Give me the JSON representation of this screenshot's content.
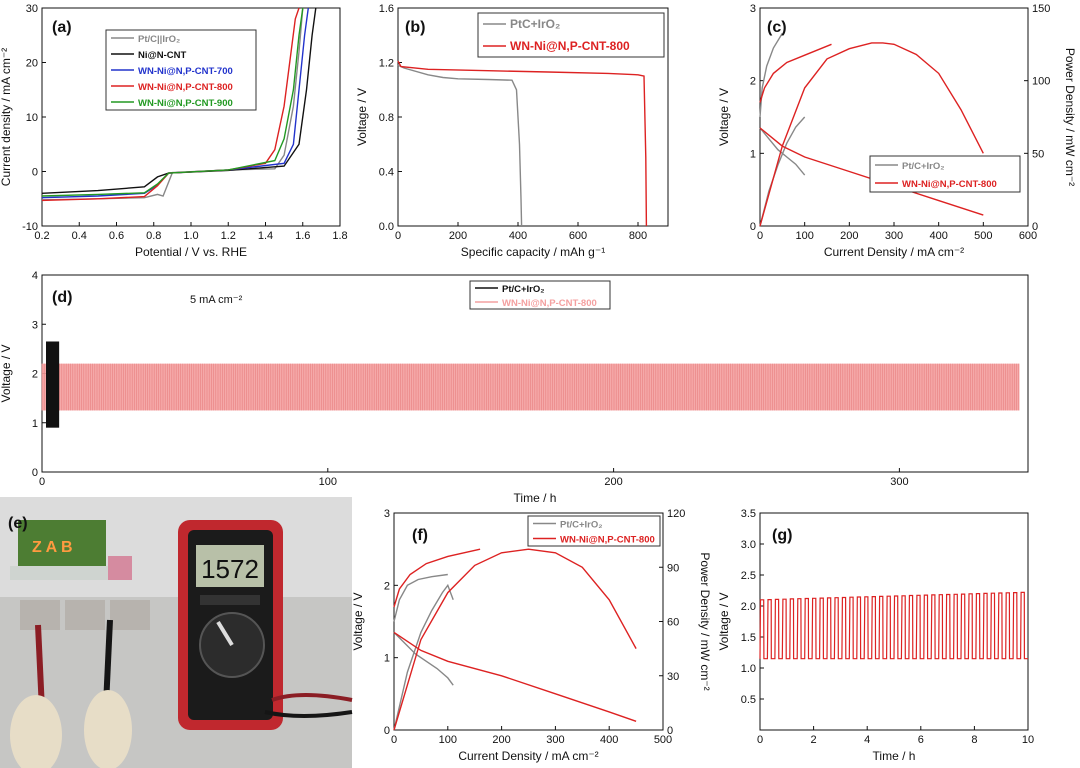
{
  "panels": {
    "a": {
      "tag": "(a)"
    },
    "b": {
      "tag": "(b)"
    },
    "c": {
      "tag": "(c)"
    },
    "d": {
      "tag": "(d)",
      "annotation": "5 mA cm⁻²"
    },
    "e": {
      "tag": "(e)",
      "meter_reading": "1572"
    },
    "f": {
      "tag": "(f)"
    },
    "g": {
      "tag": "(g)"
    }
  },
  "colors": {
    "ptc": "#888888",
    "ptc_d": "#111111",
    "nicnt": "#111111",
    "wn700": "#2233cc",
    "wn800": "#dd2222",
    "wn800_d": "#f4a0a0",
    "wn900": "#229922"
  },
  "chart_data": [
    {
      "id": "a",
      "type": "line",
      "xlabel": "Potential / V vs. RHE",
      "ylabel": "Current density / mA cm⁻²",
      "xlim": [
        0.2,
        1.8
      ],
      "ylim": [
        -10,
        30
      ],
      "xticks": [
        "0.2",
        "0.4",
        "0.6",
        "0.8",
        "1.0",
        "1.2",
        "1.4",
        "1.6",
        "1.8"
      ],
      "yticks": [
        "-10",
        "0",
        "10",
        "20",
        "30"
      ],
      "legend": "top-left",
      "series": [
        {
          "name": "Pt/C||IrO₂",
          "colorKey": "ptc",
          "x": [
            0.2,
            0.5,
            0.75,
            0.82,
            0.85,
            0.9,
            1.2,
            1.45,
            1.5,
            1.55,
            1.58,
            1.6
          ],
          "y": [
            -5.2,
            -5,
            -4.8,
            -4.2,
            -4.5,
            -0.2,
            0.3,
            0.5,
            3,
            12,
            22,
            30
          ]
        },
        {
          "name": "Ni@N-CNT",
          "colorKey": "nicnt",
          "x": [
            0.2,
            0.5,
            0.75,
            0.82,
            0.88,
            1.2,
            1.5,
            1.58,
            1.62,
            1.65,
            1.67
          ],
          "y": [
            -4,
            -3.5,
            -2.8,
            -1,
            -0.3,
            0.2,
            1,
            5,
            15,
            25,
            30
          ]
        },
        {
          "name": "WN-Ni@N,P-CNT-700",
          "colorKey": "wn700",
          "x": [
            0.2,
            0.5,
            0.75,
            0.82,
            0.88,
            1.2,
            1.5,
            1.55,
            1.58,
            1.61,
            1.63
          ],
          "y": [
            -4.8,
            -4.5,
            -4,
            -2.5,
            -0.3,
            0.3,
            1.5,
            5,
            15,
            25,
            30
          ]
        },
        {
          "name": "WN-Ni@N,P-CNT-800",
          "colorKey": "wn800",
          "x": [
            0.2,
            0.5,
            0.75,
            0.82,
            0.88,
            1.2,
            1.4,
            1.45,
            1.5,
            1.53,
            1.56,
            1.58
          ],
          "y": [
            -5.3,
            -5,
            -4.6,
            -2.6,
            -0.3,
            0.3,
            1.5,
            4,
            12,
            20,
            28,
            30
          ]
        },
        {
          "name": "WN-Ni@N,P-CNT-900",
          "colorKey": "wn900",
          "x": [
            0.2,
            0.5,
            0.75,
            0.82,
            0.88,
            1.2,
            1.45,
            1.5,
            1.55,
            1.58,
            1.6
          ],
          "y": [
            -4.5,
            -4.2,
            -3.9,
            -2.3,
            -0.3,
            0.3,
            2,
            6,
            15,
            25,
            30
          ]
        }
      ]
    },
    {
      "id": "b",
      "type": "line",
      "xlabel": "Specific capacity / mAh g⁻¹",
      "ylabel": "Voltage / V",
      "xlim": [
        0,
        900
      ],
      "ylim": [
        0,
        1.6
      ],
      "xticks": [
        "0",
        "200",
        "400",
        "600",
        "800"
      ],
      "yticks": [
        "0.0",
        "0.4",
        "0.8",
        "1.2",
        "1.6"
      ],
      "legend": "top-right",
      "series": [
        {
          "name": "PtC+IrO₂",
          "colorKey": "ptc",
          "x": [
            0,
            20,
            100,
            150,
            200,
            300,
            380,
            395,
            405,
            410,
            412
          ],
          "y": [
            1.18,
            1.16,
            1.11,
            1.09,
            1.08,
            1.075,
            1.07,
            1.0,
            0.6,
            0.2,
            0
          ]
        },
        {
          "name": "WN-Ni@N,P-CNT-800",
          "colorKey": "wn800",
          "x": [
            0,
            10,
            100,
            300,
            500,
            700,
            800,
            820,
            826,
            828
          ],
          "y": [
            1.21,
            1.17,
            1.15,
            1.14,
            1.13,
            1.12,
            1.11,
            1.1,
            0.5,
            0
          ]
        }
      ]
    },
    {
      "id": "c",
      "type": "line",
      "xlabel": "Current Density / mA cm⁻²",
      "ylabel": "Voltage / V",
      "ylabel_right": "Power Density / mW cm⁻²",
      "xlim": [
        0,
        600
      ],
      "ylim": [
        0,
        3
      ],
      "ylim_right": [
        0,
        150
      ],
      "xticks": [
        "0",
        "100",
        "200",
        "300",
        "400",
        "500",
        "600"
      ],
      "yticks": [
        "0",
        "1",
        "2",
        "3"
      ],
      "yticks_right": [
        "0",
        "50",
        "100",
        "150"
      ],
      "legend": "bottom-right",
      "series": [
        {
          "name": "Pt/C+IrO₂",
          "colorKey": "ptc",
          "axis": "left",
          "x": [
            0,
            20,
            40,
            60,
            80,
            100
          ],
          "y": [
            1.35,
            1.2,
            1.05,
            0.95,
            0.85,
            0.7
          ]
        },
        {
          "name": "",
          "colorKey": "ptc",
          "axis": "left",
          "x": [
            0,
            5,
            15,
            30,
            50
          ],
          "y": [
            1.5,
            1.9,
            2.2,
            2.45,
            2.65
          ]
        },
        {
          "name": "",
          "colorKey": "ptc",
          "axis": "right",
          "x": [
            0,
            20,
            40,
            60,
            80,
            100
          ],
          "y": [
            0,
            24,
            42,
            57,
            68,
            75
          ]
        },
        {
          "name": "WN-Ni@N,P-CNT-800",
          "colorKey": "wn800",
          "axis": "left",
          "x": [
            0,
            50,
            100,
            200,
            300,
            400,
            500
          ],
          "y": [
            1.35,
            1.1,
            0.95,
            0.75,
            0.55,
            0.35,
            0.15
          ]
        },
        {
          "name": "",
          "colorKey": "wn800",
          "axis": "left",
          "x": [
            0,
            10,
            30,
            60,
            100,
            160
          ],
          "y": [
            1.7,
            1.9,
            2.1,
            2.25,
            2.35,
            2.5
          ]
        },
        {
          "name": "",
          "colorKey": "wn800",
          "axis": "right",
          "x": [
            0,
            50,
            100,
            150,
            200,
            250,
            275,
            300,
            350,
            400,
            450,
            500
          ],
          "y": [
            0,
            55,
            95,
            115,
            122,
            126,
            126,
            125,
            118,
            105,
            80,
            50
          ]
        }
      ]
    },
    {
      "id": "d",
      "type": "line",
      "xlabel": "Time / h",
      "ylabel": "Voltage / V",
      "xlim": [
        0,
        345
      ],
      "ylim": [
        0,
        4
      ],
      "xticks": [
        "0",
        "100",
        "200",
        "300"
      ],
      "yticks": [
        "0",
        "1",
        "2",
        "3",
        "4"
      ],
      "legend": "top-center",
      "series": [
        {
          "name": "Pt/C+IrO₂",
          "colorKey": "ptc_d",
          "x_range": [
            0,
            6
          ],
          "charge_v": 2.65,
          "discharge_v": 0.9
        },
        {
          "name": "WN-Ni@N,P-CNT-800",
          "colorKey": "wn800_d",
          "x_range": [
            0,
            342
          ],
          "charge_v": 2.2,
          "discharge_v": 1.25
        }
      ]
    },
    {
      "id": "f",
      "type": "line",
      "xlabel": "Current Density / mA cm⁻²",
      "ylabel": "Voltage / V",
      "ylabel_right": "Power Density / mW cm⁻²",
      "xlim": [
        0,
        500
      ],
      "ylim": [
        0,
        3
      ],
      "ylim_right": [
        0,
        120
      ],
      "xticks": [
        "0",
        "100",
        "200",
        "300",
        "400",
        "500"
      ],
      "yticks": [
        "0",
        "1",
        "2",
        "3"
      ],
      "yticks_right": [
        "0",
        "30",
        "60",
        "90",
        "120"
      ],
      "legend": "top-right",
      "series": [
        {
          "name": "Pt/C+IrO₂",
          "colorKey": "ptc",
          "axis": "left",
          "x": [
            0,
            20,
            40,
            60,
            80,
            100,
            110
          ],
          "y": [
            1.35,
            1.2,
            1.05,
            0.95,
            0.85,
            0.72,
            0.62
          ]
        },
        {
          "name": "",
          "colorKey": "ptc",
          "axis": "left",
          "x": [
            0,
            10,
            25,
            45,
            70,
            100
          ],
          "y": [
            1.5,
            1.8,
            2.0,
            2.08,
            2.12,
            2.15
          ]
        },
        {
          "name": "",
          "colorKey": "ptc",
          "axis": "right",
          "x": [
            0,
            25,
            50,
            70,
            90,
            100,
            110
          ],
          "y": [
            0,
            32,
            54,
            66,
            76,
            80,
            72
          ]
        },
        {
          "name": "WN-Ni@N,P-CNT-800",
          "colorKey": "wn800",
          "axis": "left",
          "x": [
            0,
            50,
            100,
            200,
            300,
            400,
            450
          ],
          "y": [
            1.35,
            1.1,
            0.95,
            0.75,
            0.5,
            0.25,
            0.12
          ]
        },
        {
          "name": "",
          "colorKey": "wn800",
          "axis": "left",
          "x": [
            0,
            10,
            30,
            60,
            100,
            160
          ],
          "y": [
            1.7,
            1.95,
            2.15,
            2.3,
            2.4,
            2.5
          ]
        },
        {
          "name": "",
          "colorKey": "wn800",
          "axis": "right",
          "x": [
            0,
            50,
            100,
            150,
            200,
            250,
            300,
            350,
            400,
            450
          ],
          "y": [
            0,
            50,
            76,
            91,
            98,
            100,
            98,
            90,
            72,
            45
          ]
        }
      ]
    },
    {
      "id": "g",
      "type": "line",
      "xlabel": "Time / h",
      "ylabel": "Voltage / V",
      "xlim": [
        0,
        10
      ],
      "ylim": [
        0,
        3.5
      ],
      "xticks": [
        "0",
        "2",
        "4",
        "6",
        "8",
        "10"
      ],
      "yticks": [
        "0.5",
        "1.0",
        "1.5",
        "2.0",
        "2.5",
        "3.0",
        "3.5"
      ],
      "series": [
        {
          "name": "",
          "colorKey": "wn800",
          "cycles": 36,
          "charge_v": [
            2.1,
            2.22
          ],
          "discharge_v": 1.15
        }
      ]
    }
  ]
}
